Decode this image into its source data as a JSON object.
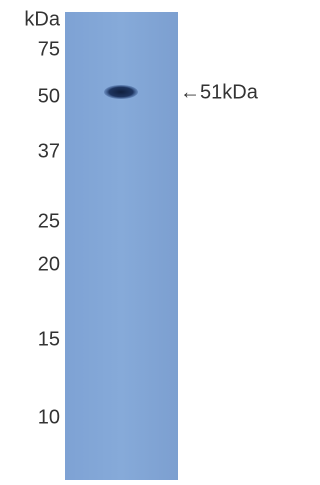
{
  "blot": {
    "unit_label": "kDa",
    "markers": [
      "75",
      "50",
      "37",
      "25",
      "20",
      "15",
      "10"
    ],
    "band_annotation": "←51kDa"
  }
}
